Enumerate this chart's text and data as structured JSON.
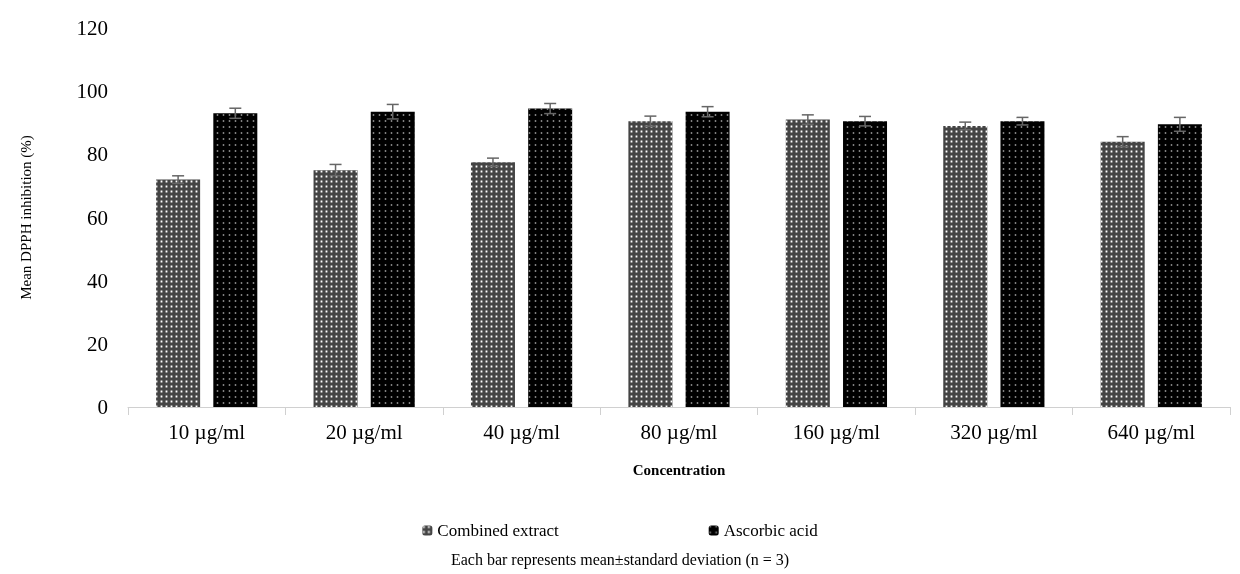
{
  "chart_data": {
    "type": "bar",
    "xlabel": "Concentration",
    "ylabel": "Mean DPPH inhibition (%)",
    "categories": [
      "10 µg/ml",
      "20 µg/ml",
      "40 µg/ml",
      "80 µg/ml",
      "160 µg/ml",
      "320 µg/ml",
      "640 µg/ml"
    ],
    "series": [
      {
        "name": "Combined extract",
        "color": "#444444",
        "values": [
          72,
          75,
          77.5,
          90.5,
          91,
          89,
          84
        ],
        "errors": [
          1.2,
          1.8,
          1.3,
          1.6,
          1.5,
          1.2,
          1.6
        ]
      },
      {
        "name": "Ascorbic acid",
        "color": "#000000",
        "values": [
          93,
          93.5,
          94.5,
          93.5,
          90.5,
          90.5,
          89.5
        ],
        "errors": [
          1.6,
          2.3,
          1.6,
          1.6,
          1.5,
          1.2,
          2.2
        ]
      }
    ],
    "ylim": [
      0,
      120
    ],
    "yticks": [
      0,
      20,
      40,
      60,
      80,
      100,
      120
    ],
    "grid": false,
    "legend": "bottom",
    "annotations": [
      "Each bar represents mean±standard deviation (n = 3)"
    ]
  }
}
